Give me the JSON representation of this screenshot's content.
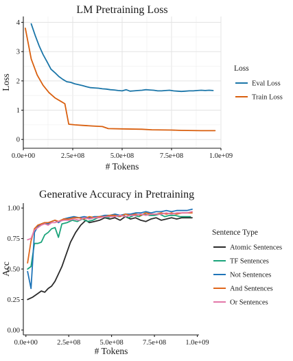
{
  "chart_data": [
    {
      "type": "line",
      "title": "LM Pretraining Loss",
      "xlabel": "# Tokens",
      "ylabel": "Loss",
      "xlim": [
        0,
        1000000000
      ],
      "ylim": [
        -0.3,
        4.2
      ],
      "xticks": [
        0,
        250000000,
        500000000,
        750000000,
        1000000000
      ],
      "xtick_labels": [
        "0.0e+00",
        "2.5e+08",
        "5.0e+08",
        "7.5e+08",
        "1.0e+09"
      ],
      "yticks": [
        0,
        1,
        2,
        3,
        4
      ],
      "ytick_labels": [
        "0",
        "1",
        "2",
        "3",
        "4"
      ],
      "grid": true,
      "legend_title": "Loss",
      "legend_position": "right",
      "series": [
        {
          "name": "Eval Loss",
          "color": "#1a75a8",
          "x": [
            40000000,
            60000000,
            80000000,
            100000000,
            120000000,
            140000000,
            160000000,
            180000000,
            200000000,
            220000000,
            240000000,
            260000000,
            280000000,
            300000000,
            320000000,
            340000000,
            360000000,
            380000000,
            400000000,
            420000000,
            440000000,
            460000000,
            480000000,
            500000000,
            520000000,
            540000000,
            560000000,
            580000000,
            600000000,
            620000000,
            640000000,
            660000000,
            680000000,
            700000000,
            720000000,
            740000000,
            760000000,
            780000000,
            800000000,
            820000000,
            840000000,
            860000000,
            880000000,
            900000000,
            920000000,
            940000000,
            960000000
          ],
          "y": [
            3.95,
            3.55,
            3.2,
            2.9,
            2.65,
            2.4,
            2.28,
            2.15,
            2.05,
            1.97,
            1.95,
            1.9,
            1.87,
            1.84,
            1.8,
            1.77,
            1.76,
            1.75,
            1.73,
            1.72,
            1.7,
            1.69,
            1.67,
            1.66,
            1.7,
            1.65,
            1.66,
            1.67,
            1.68,
            1.7,
            1.69,
            1.68,
            1.66,
            1.66,
            1.67,
            1.68,
            1.66,
            1.65,
            1.64,
            1.65,
            1.66,
            1.66,
            1.67,
            1.68,
            1.67,
            1.68,
            1.67
          ]
        },
        {
          "name": "Train Loss",
          "color": "#d95f0e",
          "x": [
            10000000,
            40000000,
            70000000,
            100000000,
            130000000,
            160000000,
            190000000,
            210000000,
            230000000,
            260000000,
            300000000,
            350000000,
            400000000,
            430000000,
            500000000,
            600000000,
            650000000,
            750000000,
            800000000,
            900000000,
            970000000
          ],
          "y": [
            3.8,
            2.75,
            2.2,
            1.85,
            1.6,
            1.42,
            1.3,
            1.22,
            0.52,
            0.5,
            0.48,
            0.46,
            0.44,
            0.37,
            0.36,
            0.35,
            0.33,
            0.32,
            0.31,
            0.3,
            0.3
          ]
        }
      ]
    },
    {
      "type": "line",
      "title": "Generative Accuracy in Pretraining",
      "xlabel": "# Tokens",
      "ylabel": "Acc",
      "xlim": [
        -15000000,
        1010000000
      ],
      "ylim": [
        -0.04,
        1.04
      ],
      "xticks": [
        0,
        250000000,
        500000000,
        750000000,
        1000000000
      ],
      "xtick_labels": [
        "0.0e+00",
        "2.5e+08",
        "5.0e+08",
        "7.5e+08",
        "1.0e+09"
      ],
      "yticks": [
        0,
        0.25,
        0.5,
        0.75,
        1.0
      ],
      "ytick_labels": [
        "0.00",
        "0.25",
        "0.50",
        "0.75",
        "1.00"
      ],
      "grid": false,
      "legend_title": "Sentence Type",
      "legend_position": "right",
      "series": [
        {
          "name": "Atomic Sentences",
          "color": "#2a2a2a",
          "x": [
            10000000,
            40000000,
            70000000,
            90000000,
            110000000,
            130000000,
            150000000,
            170000000,
            190000000,
            210000000,
            230000000,
            260000000,
            290000000,
            320000000,
            350000000,
            370000000,
            400000000,
            430000000,
            460000000,
            490000000,
            520000000,
            550000000,
            580000000,
            610000000,
            640000000,
            670000000,
            700000000,
            730000000,
            760000000,
            790000000,
            820000000,
            850000000,
            880000000,
            910000000,
            940000000,
            970000000
          ],
          "y": [
            0.25,
            0.27,
            0.3,
            0.32,
            0.31,
            0.34,
            0.36,
            0.4,
            0.46,
            0.52,
            0.6,
            0.72,
            0.8,
            0.86,
            0.9,
            0.88,
            0.89,
            0.9,
            0.92,
            0.91,
            0.92,
            0.9,
            0.93,
            0.91,
            0.92,
            0.9,
            0.89,
            0.91,
            0.92,
            0.9,
            0.91,
            0.92,
            0.91,
            0.92,
            0.92,
            0.92
          ]
        },
        {
          "name": "TF Sentences",
          "color": "#1aa37a",
          "x": [
            10000000,
            30000000,
            50000000,
            70000000,
            90000000,
            110000000,
            130000000,
            150000000,
            170000000,
            190000000,
            210000000,
            240000000,
            270000000,
            300000000,
            330000000,
            360000000,
            390000000,
            420000000,
            450000000,
            480000000,
            510000000,
            540000000,
            570000000,
            600000000,
            630000000,
            660000000,
            690000000,
            720000000,
            750000000,
            780000000,
            810000000,
            840000000,
            870000000,
            900000000,
            930000000,
            960000000
          ],
          "y": [
            0.5,
            0.52,
            0.71,
            0.71,
            0.72,
            0.78,
            0.8,
            0.83,
            0.84,
            0.76,
            0.87,
            0.88,
            0.9,
            0.89,
            0.91,
            0.89,
            0.9,
            0.92,
            0.93,
            0.92,
            0.94,
            0.93,
            0.94,
            0.92,
            0.94,
            0.93,
            0.95,
            0.94,
            0.94,
            0.95,
            0.93,
            0.94,
            0.94,
            0.93,
            0.93,
            0.93
          ]
        },
        {
          "name": "Not Sentences",
          "color": "#1f74b8",
          "x": [
            10000000,
            30000000,
            50000000,
            70000000,
            90000000,
            110000000,
            130000000,
            150000000,
            170000000,
            190000000,
            220000000,
            250000000,
            280000000,
            310000000,
            340000000,
            370000000,
            400000000,
            430000000,
            460000000,
            490000000,
            520000000,
            550000000,
            580000000,
            610000000,
            640000000,
            670000000,
            700000000,
            730000000,
            760000000,
            790000000,
            820000000,
            850000000,
            880000000,
            910000000,
            940000000,
            970000000
          ],
          "y": [
            0.48,
            0.34,
            0.8,
            0.85,
            0.87,
            0.88,
            0.87,
            0.89,
            0.9,
            0.88,
            0.91,
            0.92,
            0.93,
            0.92,
            0.93,
            0.92,
            0.93,
            0.93,
            0.94,
            0.94,
            0.95,
            0.94,
            0.95,
            0.95,
            0.96,
            0.96,
            0.97,
            0.96,
            0.97,
            0.97,
            0.98,
            0.97,
            0.98,
            0.98,
            0.98,
            0.99
          ]
        },
        {
          "name": "And Sentences",
          "color": "#e0661a",
          "x": [
            10000000,
            30000000,
            50000000,
            70000000,
            90000000,
            110000000,
            130000000,
            150000000,
            170000000,
            190000000,
            220000000,
            250000000,
            280000000,
            310000000,
            340000000,
            370000000,
            400000000,
            430000000,
            460000000,
            490000000,
            520000000,
            550000000,
            580000000,
            610000000,
            640000000,
            670000000,
            700000000,
            730000000,
            760000000,
            790000000,
            820000000,
            850000000,
            880000000,
            910000000,
            940000000,
            970000000
          ],
          "y": [
            0.55,
            0.73,
            0.83,
            0.86,
            0.87,
            0.88,
            0.88,
            0.89,
            0.9,
            0.89,
            0.91,
            0.91,
            0.92,
            0.92,
            0.91,
            0.93,
            0.92,
            0.93,
            0.93,
            0.94,
            0.94,
            0.93,
            0.95,
            0.94,
            0.95,
            0.94,
            0.96,
            0.95,
            0.95,
            0.96,
            0.95,
            0.96,
            0.95,
            0.96,
            0.96,
            0.96
          ]
        },
        {
          "name": "Or Sentences",
          "color": "#e377a8",
          "x": [
            10000000,
            30000000,
            50000000,
            70000000,
            90000000,
            110000000,
            130000000,
            150000000,
            170000000,
            190000000,
            220000000,
            250000000,
            280000000,
            310000000,
            340000000,
            370000000,
            400000000,
            430000000,
            460000000,
            490000000,
            520000000,
            550000000,
            580000000,
            610000000,
            640000000,
            670000000,
            700000000,
            730000000,
            760000000,
            790000000,
            820000000,
            850000000,
            880000000,
            910000000,
            940000000,
            970000000
          ],
          "y": [
            0.74,
            0.75,
            0.82,
            0.84,
            0.86,
            0.87,
            0.86,
            0.88,
            0.88,
            0.89,
            0.9,
            0.9,
            0.91,
            0.9,
            0.92,
            0.91,
            0.92,
            0.92,
            0.93,
            0.93,
            0.93,
            0.94,
            0.93,
            0.94,
            0.94,
            0.95,
            0.94,
            0.95,
            0.95,
            0.95,
            0.96,
            0.95,
            0.96,
            0.96,
            0.96,
            0.97
          ]
        }
      ]
    }
  ]
}
